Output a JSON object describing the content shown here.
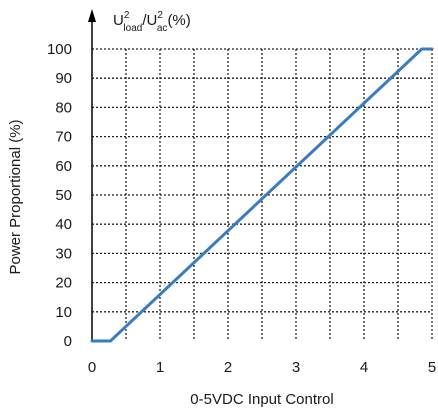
{
  "chart_data": {
    "type": "line",
    "xlabel": "0-5VDC Input Control",
    "ylabel": "Power Proportional  (%)",
    "top_label": {
      "u1": "U",
      "sup1": "2",
      "sub1": "load",
      "slash": "/U",
      "sup2": "2",
      "sub2": "ac",
      "tail": "(%)"
    },
    "xlim": [
      0,
      5
    ],
    "ylim": [
      0,
      100
    ],
    "x_ticks": [
      0,
      1,
      2,
      3,
      4,
      5
    ],
    "x_tick_labels": [
      "0",
      "1",
      "2",
      "3",
      "4",
      "5"
    ],
    "y_ticks": [
      0,
      10,
      20,
      30,
      40,
      50,
      60,
      70,
      80,
      90,
      100
    ],
    "y_tick_labels": [
      "0",
      "10",
      "20",
      "30",
      "40",
      "50",
      "60",
      "70",
      "80",
      "90",
      "100"
    ],
    "grid": true,
    "grid_style": "dotted",
    "series": [
      {
        "color": "#3b7bbf",
        "points": [
          [
            0,
            0
          ],
          [
            0.27,
            0
          ],
          [
            4.85,
            100
          ],
          [
            5.0,
            100
          ]
        ]
      }
    ]
  }
}
